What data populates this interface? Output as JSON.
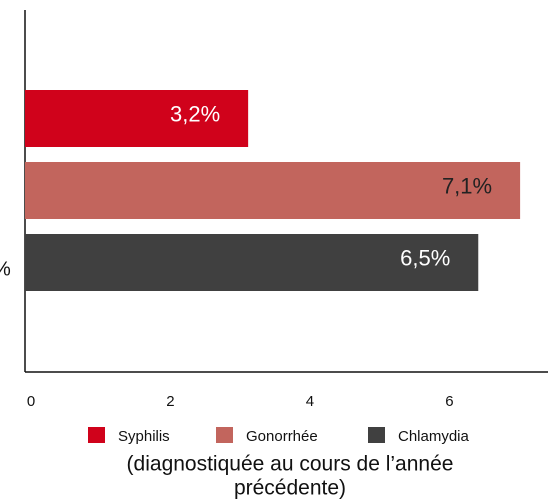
{
  "chart_data": {
    "type": "bar",
    "orientation": "horizontal",
    "categories": [
      "%"
    ],
    "series": [
      {
        "name": "Syphilis",
        "color": "#d0021b",
        "values": [
          3.2
        ],
        "value_labels": [
          "3,2%"
        ],
        "label_color": "#ffffff"
      },
      {
        "name": "Gonorrhée",
        "color": "#c2655d",
        "values": [
          7.1
        ],
        "value_labels": [
          "7,1%"
        ],
        "label_color": "#222222"
      },
      {
        "name": "Chlamydia",
        "color": "#404040",
        "values": [
          6.5
        ],
        "value_labels": [
          "6,5%"
        ],
        "label_color": "#ffffff"
      }
    ],
    "xlim": [
      0,
      7.5
    ],
    "xticks": [
      0,
      2,
      4,
      6
    ],
    "note": [
      "(diagnostiquée au cours de l’année",
      "précédente)"
    ],
    "legend": "bottom",
    "grid": false
  }
}
